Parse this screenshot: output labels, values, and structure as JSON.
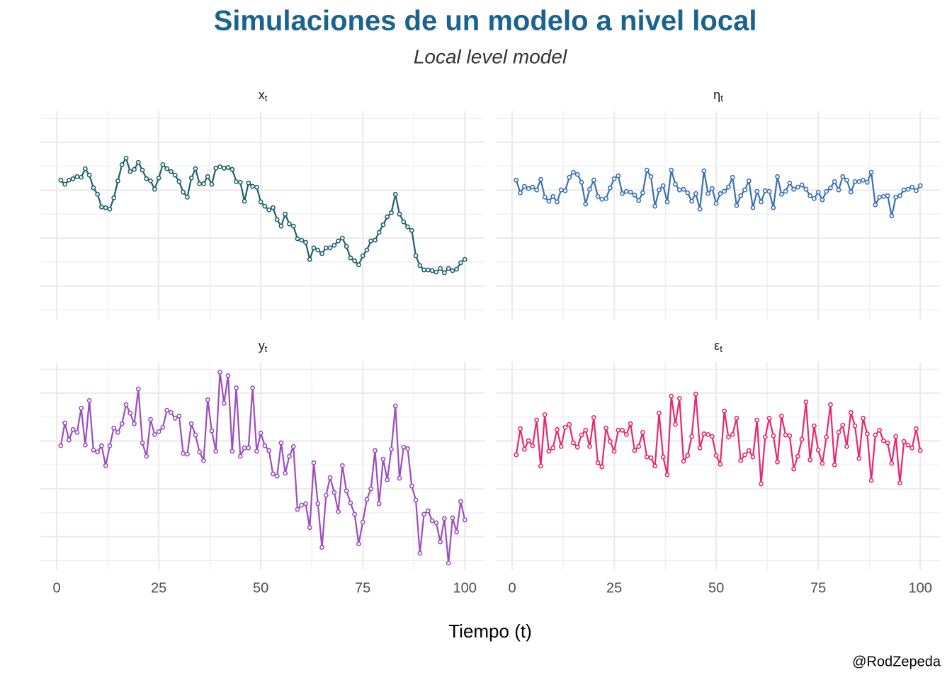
{
  "title": "Simulaciones de un modelo a nivel local",
  "subtitle": "Local level model",
  "x_label": "Tiempo (t)",
  "caption": "@RodZepeda",
  "chart_data": [
    {
      "type": "line",
      "title": "x",
      "title_sub": "t",
      "color": "#1f5f6b",
      "xlim": [
        -4,
        105
      ],
      "xticks": [
        0,
        25,
        50,
        75,
        100
      ],
      "ylim": [
        -3.4,
        5.3
      ],
      "yticks": [
        -3,
        -2,
        -1,
        0,
        1,
        2,
        3,
        4,
        5
      ],
      "grid": true,
      "show_x_labels": false,
      "x": [
        1,
        2,
        3,
        4,
        5,
        6,
        7,
        8,
        9,
        10,
        11,
        12,
        13,
        14,
        15,
        16,
        17,
        18,
        19,
        20,
        21,
        22,
        23,
        24,
        25,
        26,
        27,
        28,
        29,
        30,
        31,
        32,
        33,
        34,
        35,
        36,
        37,
        38,
        39,
        40,
        41,
        42,
        43,
        44,
        45,
        46,
        47,
        48,
        49,
        50,
        51,
        52,
        53,
        54,
        55,
        56,
        57,
        58,
        59,
        60,
        61,
        62,
        63,
        64,
        65,
        66,
        67,
        68,
        69,
        70,
        71,
        72,
        73,
        74,
        75,
        76,
        77,
        78,
        79,
        80,
        81,
        82,
        83,
        84,
        85,
        86,
        87,
        88,
        89,
        90,
        91,
        92,
        93,
        94,
        95,
        96,
        97,
        98,
        99,
        100
      ],
      "values": [
        2.42,
        2.25,
        2.42,
        2.48,
        2.57,
        2.54,
        2.9,
        2.63,
        2.1,
        1.83,
        1.3,
        1.27,
        1.21,
        1.68,
        2.39,
        3.07,
        3.34,
        2.78,
        2.87,
        3.16,
        2.84,
        2.48,
        2.39,
        2.04,
        2.51,
        3.07,
        2.9,
        2.78,
        2.63,
        2.36,
        1.92,
        1.71,
        2.51,
        2.9,
        2.27,
        2.27,
        2.57,
        2.25,
        2.92,
        2.98,
        2.92,
        2.95,
        2.87,
        2.36,
        2.33,
        1.54,
        2.3,
        2.16,
        2.13,
        1.51,
        1.33,
        1.18,
        1.27,
        0.77,
        0.5,
        1.0,
        0.59,
        0.5,
        -0.03,
        -0.09,
        -0.18,
        -0.89,
        -0.41,
        -0.5,
        -0.65,
        -0.41,
        -0.41,
        -0.3,
        -0.12,
        0,
        -0.35,
        -0.83,
        -0.95,
        -1.12,
        -0.74,
        -0.5,
        -0.12,
        -0.09,
        0.24,
        0.56,
        0.89,
        1.06,
        1.83,
        1.0,
        0.68,
        0.47,
        0.32,
        -0.74,
        -1.15,
        -1.33,
        -1.33,
        -1.36,
        -1.42,
        -1.27,
        -1.45,
        -1.27,
        -1.36,
        -1.3,
        -1.03,
        -0.89
      ]
    },
    {
      "type": "line",
      "title": "η",
      "title_sub": "t",
      "color": "#3a6fb5",
      "xlim": [
        -4,
        105
      ],
      "xticks": [
        0,
        25,
        50,
        75,
        100
      ],
      "ylim": [
        -3.4,
        5.3
      ],
      "yticks": [
        -3,
        -2,
        -1,
        0,
        1,
        2,
        3,
        4,
        5
      ],
      "grid": true,
      "show_x_labels": false,
      "x": [
        1,
        2,
        3,
        4,
        5,
        6,
        7,
        8,
        9,
        10,
        11,
        12,
        13,
        14,
        15,
        16,
        17,
        18,
        19,
        20,
        21,
        22,
        23,
        24,
        25,
        26,
        27,
        28,
        29,
        30,
        31,
        32,
        33,
        34,
        35,
        36,
        37,
        38,
        39,
        40,
        41,
        42,
        43,
        44,
        45,
        46,
        47,
        48,
        49,
        50,
        51,
        52,
        53,
        54,
        55,
        56,
        57,
        58,
        59,
        60,
        61,
        62,
        63,
        64,
        65,
        66,
        67,
        68,
        69,
        70,
        71,
        72,
        73,
        74,
        75,
        76,
        77,
        78,
        79,
        80,
        81,
        82,
        83,
        84,
        85,
        86,
        87,
        88,
        89,
        90,
        91,
        92,
        93,
        94,
        95,
        96,
        97,
        98,
        99,
        100
      ],
      "values": [
        2.42,
        1.89,
        2.16,
        2.07,
        2.13,
        2.01,
        2.45,
        1.71,
        1.54,
        1.74,
        1.51,
        2.01,
        1.98,
        2.54,
        2.75,
        2.66,
        2.33,
        1.42,
        2.04,
        2.42,
        1.74,
        1.62,
        1.65,
        2.1,
        2.48,
        2.6,
        1.86,
        1.95,
        1.92,
        1.8,
        1.57,
        1.89,
        2.84,
        2.57,
        1.33,
        2.01,
        2.19,
        1.51,
        2.84,
        2.25,
        2.01,
        2.04,
        1.89,
        1.54,
        1.86,
        1.21,
        2.81,
        1.86,
        2.07,
        1.45,
        1.86,
        1.95,
        2.13,
        2.54,
        1.36,
        1.77,
        2.01,
        2.39,
        1.27,
        1.95,
        1.51,
        1.98,
        1.95,
        1.27,
        2.57,
        1.83,
        1.95,
        2.3,
        2.04,
        2.13,
        2.22,
        2.04,
        1.77,
        1.65,
        1.92,
        1.6,
        1.95,
        2.1,
        2.36,
        2.01,
        2.57,
        2.42,
        1.92,
        2.36,
        2.36,
        2.42,
        2.33,
        2.75,
        1.39,
        1.71,
        1.74,
        1.77,
        0.92,
        1.71,
        1.77,
        2.01,
        2.04,
        2.13,
        1.98,
        2.19
      ]
    },
    {
      "type": "line",
      "title": "y",
      "title_sub": "t",
      "color": "#9b4dbf",
      "xlim": [
        -4,
        105
      ],
      "xticks": [
        0,
        25,
        50,
        75,
        100
      ],
      "ylim": [
        -3.4,
        5.3
      ],
      "yticks": [
        -3,
        -2,
        -1,
        0,
        1,
        2,
        3,
        4,
        5
      ],
      "grid": true,
      "show_x_labels": true,
      "x": [
        1,
        2,
        3,
        4,
        5,
        6,
        7,
        8,
        9,
        10,
        11,
        12,
        13,
        14,
        15,
        16,
        17,
        18,
        19,
        20,
        21,
        22,
        23,
        24,
        25,
        26,
        27,
        28,
        29,
        30,
        31,
        32,
        33,
        34,
        35,
        36,
        37,
        38,
        39,
        40,
        41,
        42,
        43,
        44,
        45,
        46,
        47,
        48,
        49,
        50,
        51,
        52,
        53,
        54,
        55,
        56,
        57,
        58,
        59,
        60,
        61,
        62,
        63,
        64,
        65,
        66,
        67,
        68,
        69,
        70,
        71,
        72,
        73,
        74,
        75,
        76,
        77,
        78,
        79,
        80,
        81,
        82,
        83,
        84,
        85,
        86,
        87,
        88,
        89,
        90,
        91,
        92,
        93,
        94,
        95,
        96,
        97,
        98,
        99,
        100
      ],
      "values": [
        1.8,
        2.75,
        2.04,
        2.48,
        2.36,
        3.37,
        1.83,
        3.69,
        1.62,
        1.54,
        1.8,
        0.97,
        1.8,
        2.54,
        2.36,
        2.72,
        3.52,
        3.16,
        2.72,
        4.17,
        1.92,
        1.36,
        2.9,
        2.27,
        2.39,
        2.57,
        3.28,
        3.19,
        2.95,
        3.04,
        1.48,
        1.45,
        2.72,
        2.25,
        1.54,
        1.18,
        3.72,
        2.42,
        1.57,
        4.87,
        3.57,
        4.73,
        1.57,
        4.22,
        1.36,
        1.71,
        1.71,
        4.22,
        1.57,
        2.33,
        1.8,
        1.6,
        0.62,
        0.53,
        1.92,
        0.65,
        1.36,
        1.77,
        -0.86,
        -0.68,
        -0.62,
        -1.62,
        1.09,
        -0.62,
        -2.45,
        -0.27,
        0.47,
        -0.15,
        -0.95,
        0.97,
        -0.09,
        -0.59,
        -1.06,
        -2.3,
        -1.39,
        -0.44,
        0,
        1.6,
        -0.62,
        1.24,
        0.38,
        1.65,
        3.46,
        0.44,
        1.74,
        1.68,
        0.12,
        -0.47,
        -2.69,
        -1.06,
        -0.92,
        -1.33,
        -1.42,
        -2.22,
        -1.24,
        -3.1,
        -1.21,
        -1.8,
        -0.53,
        -1.3
      ]
    },
    {
      "type": "line",
      "title": "ε",
      "title_sub": "t",
      "color": "#e8276f",
      "xlim": [
        -4,
        105
      ],
      "xticks": [
        0,
        25,
        50,
        75,
        100
      ],
      "ylim": [
        -3.4,
        5.3
      ],
      "yticks": [
        -3,
        -2,
        -1,
        0,
        1,
        2,
        3,
        4,
        5
      ],
      "grid": true,
      "show_x_labels": true,
      "x": [
        1,
        2,
        3,
        4,
        5,
        6,
        7,
        8,
        9,
        10,
        11,
        12,
        13,
        14,
        15,
        16,
        17,
        18,
        19,
        20,
        21,
        22,
        23,
        24,
        25,
        26,
        27,
        28,
        29,
        30,
        31,
        32,
        33,
        34,
        35,
        36,
        37,
        38,
        39,
        40,
        41,
        42,
        43,
        44,
        45,
        46,
        47,
        48,
        49,
        50,
        51,
        52,
        53,
        54,
        55,
        56,
        57,
        58,
        59,
        60,
        61,
        62,
        63,
        64,
        65,
        66,
        67,
        68,
        69,
        70,
        71,
        72,
        73,
        74,
        75,
        76,
        77,
        78,
        79,
        80,
        81,
        82,
        83,
        84,
        85,
        86,
        87,
        88,
        89,
        90,
        91,
        92,
        93,
        94,
        95,
        96,
        97,
        98,
        99,
        100
      ],
      "values": [
        1.42,
        2.51,
        1.65,
        2.01,
        1.8,
        2.87,
        0.95,
        3.1,
        1.57,
        1.71,
        2.48,
        1.77,
        2.57,
        2.69,
        1.92,
        1.74,
        2.25,
        2.45,
        1.77,
        2.98,
        1.09,
        0.92,
        2.54,
        1.98,
        1.57,
        2.45,
        2.45,
        2.27,
        2.72,
        1.6,
        1.77,
        2.36,
        1.33,
        1.3,
        0.95,
        3.16,
        1.33,
        0.59,
        3.87,
        2.69,
        3.78,
        1.15,
        1.39,
        2.19,
        3.96,
        1.71,
        2.3,
        2.27,
        2.19,
        1.39,
        1.03,
        3.25,
        2.16,
        2.27,
        2.95,
        1.18,
        1.42,
        1.6,
        1.33,
        2.87,
        0.21,
        2.16,
        2.95,
        2.22,
        1.12,
        3.04,
        2.25,
        2.22,
        0.83,
        1.36,
        2.07,
        3.63,
        1.21,
        2.63,
        1.62,
        1.06,
        2.16,
        3.52,
        1.0,
        2.36,
        2.66,
        1.77,
        3.19,
        2.63,
        1.27,
        2.95,
        2.3,
        0.35,
        2.25,
        2.45,
        2.01,
        1.92,
        1.06,
        2.19,
        0.24,
        1.98,
        1.83,
        1.71,
        2.51,
        1.6
      ]
    }
  ]
}
